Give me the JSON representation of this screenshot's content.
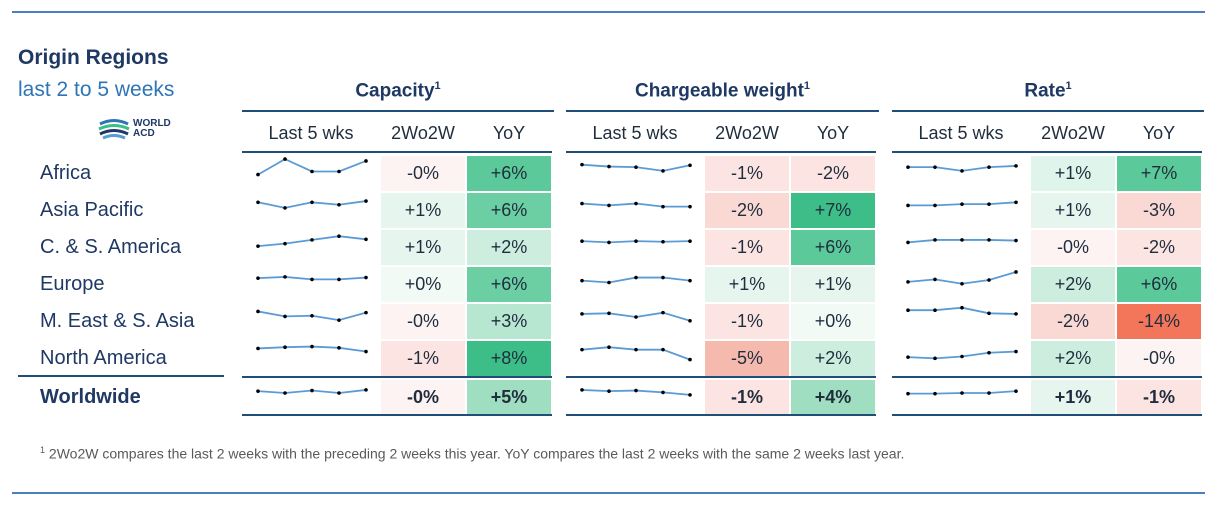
{
  "header": {
    "title": "Origin Regions",
    "subtitle": "last 2 to 5 weeks",
    "logo_text_line1": "WORLD",
    "logo_text_line2": "ACD"
  },
  "groups": [
    {
      "label": "Capacity",
      "sup": "1"
    },
    {
      "label": "Chargeable weight",
      "sup": "1"
    },
    {
      "label": "Rate",
      "sup": "1"
    }
  ],
  "columns": {
    "spark": "Last 5 wks",
    "w2w": "2Wo2W",
    "yoy": "YoY"
  },
  "colors": {
    "rule": "#4a7fc1",
    "title": "#1f3864",
    "subtitle": "#2e75b6",
    "spark_line": "#5b9bd5",
    "neg_extreme": "#f4765a",
    "pos_strong": "#3dbd88"
  },
  "rows": [
    {
      "region": "Africa",
      "bold": false,
      "capacity": {
        "spark": [
          2,
          4.5,
          2.5,
          2.5,
          4.2
        ],
        "w2w": "-0%",
        "yoy": "+6%",
        "w2w_bg": "#fdf3f3",
        "yoy_bg": "#5cc99a"
      },
      "weight": {
        "spark": [
          3.6,
          3.3,
          3.2,
          2.6,
          3.5
        ],
        "w2w": "-1%",
        "yoy": "-2%",
        "w2w_bg": "#fbe4e2",
        "yoy_bg": "#fbe4e2"
      },
      "rate": {
        "spark": [
          3.2,
          3.2,
          2.6,
          3.2,
          3.4
        ],
        "w2w": "+1%",
        "yoy": "+7%",
        "w2w_bg": "#dff4ea",
        "yoy_bg": "#5cc99a"
      }
    },
    {
      "region": "Asia Pacific",
      "bold": false,
      "capacity": {
        "spark": [
          3.5,
          2.6,
          3.5,
          3.1,
          3.7
        ],
        "w2w": "+1%",
        "yoy": "+6%",
        "w2w_bg": "#e6f6ee",
        "yoy_bg": "#6ccfa3"
      },
      "weight": {
        "spark": [
          3.3,
          3.0,
          3.3,
          2.8,
          2.8
        ],
        "w2w": "-2%",
        "yoy": "+7%",
        "w2w_bg": "#fad9d5",
        "yoy_bg": "#3dbd88"
      },
      "rate": {
        "spark": [
          3.0,
          3.0,
          3.2,
          3.2,
          3.5
        ],
        "w2w": "+1%",
        "yoy": "-3%",
        "w2w_bg": "#e6f6ee",
        "yoy_bg": "#fad9d5"
      }
    },
    {
      "region": "C. & S. America",
      "bold": false,
      "capacity": {
        "spark": [
          2.4,
          2.8,
          3.4,
          4.0,
          3.5
        ],
        "w2w": "+1%",
        "yoy": "+2%",
        "w2w_bg": "#e6f6ee",
        "yoy_bg": "#cdeedf"
      },
      "weight": {
        "spark": [
          3.2,
          3.0,
          3.2,
          3.1,
          3.2
        ],
        "w2w": "-1%",
        "yoy": "+6%",
        "w2w_bg": "#fbe4e2",
        "yoy_bg": "#5cc99a"
      },
      "rate": {
        "spark": [
          3.0,
          3.4,
          3.4,
          3.4,
          3.3
        ],
        "w2w": "-0%",
        "yoy": "-2%",
        "w2w_bg": "#fdf3f3",
        "yoy_bg": "#fbe4e2"
      }
    },
    {
      "region": "Europe",
      "bold": false,
      "capacity": {
        "spark": [
          3.2,
          3.4,
          3.0,
          3.0,
          3.3
        ],
        "w2w": "+0%",
        "yoy": "+6%",
        "w2w_bg": "#f1faf5",
        "yoy_bg": "#6ccfa3"
      },
      "weight": {
        "spark": [
          2.8,
          2.5,
          3.3,
          3.3,
          2.8
        ],
        "w2w": "+1%",
        "yoy": "+1%",
        "w2w_bg": "#e6f6ee",
        "yoy_bg": "#e6f6ee"
      },
      "rate": {
        "spark": [
          2.6,
          3.0,
          2.3,
          2.9,
          4.2
        ],
        "w2w": "+2%",
        "yoy": "+6%",
        "w2w_bg": "#cdeedf",
        "yoy_bg": "#5cc99a"
      }
    },
    {
      "region": "M. East & S. Asia",
      "bold": false,
      "capacity": {
        "spark": [
          3.8,
          3.0,
          3.1,
          2.4,
          3.6
        ],
        "w2w": "-0%",
        "yoy": "+3%",
        "w2w_bg": "#fdf3f3",
        "yoy_bg": "#b8e7d1"
      },
      "weight": {
        "spark": [
          3.4,
          3.5,
          2.9,
          3.6,
          2.3
        ],
        "w2w": "-1%",
        "yoy": "+0%",
        "w2w_bg": "#fbe4e2",
        "yoy_bg": "#f1faf5"
      },
      "rate": {
        "spark": [
          4.0,
          4.0,
          4.4,
          3.5,
          3.4
        ],
        "w2w": "-2%",
        "yoy": "-14%",
        "w2w_bg": "#fad9d5",
        "yoy_bg": "#f4765a"
      }
    },
    {
      "region": "North America",
      "bold": false,
      "capacity": {
        "spark": [
          3.8,
          4.0,
          4.1,
          3.9,
          3.3
        ],
        "w2w": "-1%",
        "yoy": "+8%",
        "w2w_bg": "#fbe4e2",
        "yoy_bg": "#3dbd88"
      },
      "weight": {
        "spark": [
          3.6,
          4.0,
          3.6,
          3.6,
          2.0
        ],
        "w2w": "-5%",
        "yoy": "+2%",
        "w2w_bg": "#f6b9ae",
        "yoy_bg": "#cdeedf"
      },
      "rate": {
        "spark": [
          2.4,
          2.2,
          2.5,
          3.1,
          3.3
        ],
        "w2w": "+2%",
        "yoy": "-0%",
        "w2w_bg": "#cdeedf",
        "yoy_bg": "#fdf3f3"
      }
    },
    {
      "region": "Worldwide",
      "bold": true,
      "capacity": {
        "spark": [
          3.2,
          2.9,
          3.3,
          2.9,
          3.4
        ],
        "w2w": "-0%",
        "yoy": "+5%",
        "w2w_bg": "#fdf3f3",
        "yoy_bg": "#9fdec0"
      },
      "weight": {
        "spark": [
          3.4,
          3.2,
          3.3,
          3.0,
          2.6
        ],
        "w2w": "-1%",
        "yoy": "+4%",
        "w2w_bg": "#fbe4e2",
        "yoy_bg": "#9fdec0"
      },
      "rate": {
        "spark": [
          2.8,
          2.8,
          2.9,
          2.9,
          3.2
        ],
        "w2w": "+1%",
        "yoy": "-1%",
        "w2w_bg": "#e6f6ee",
        "yoy_bg": "#fbe4e2"
      }
    }
  ],
  "footnote": {
    "sup": "1",
    "text": " 2Wo2W compares the last 2 weeks with the preceding 2 weeks this year. YoY compares the last 2 weeks with the same 2 weeks last year."
  }
}
